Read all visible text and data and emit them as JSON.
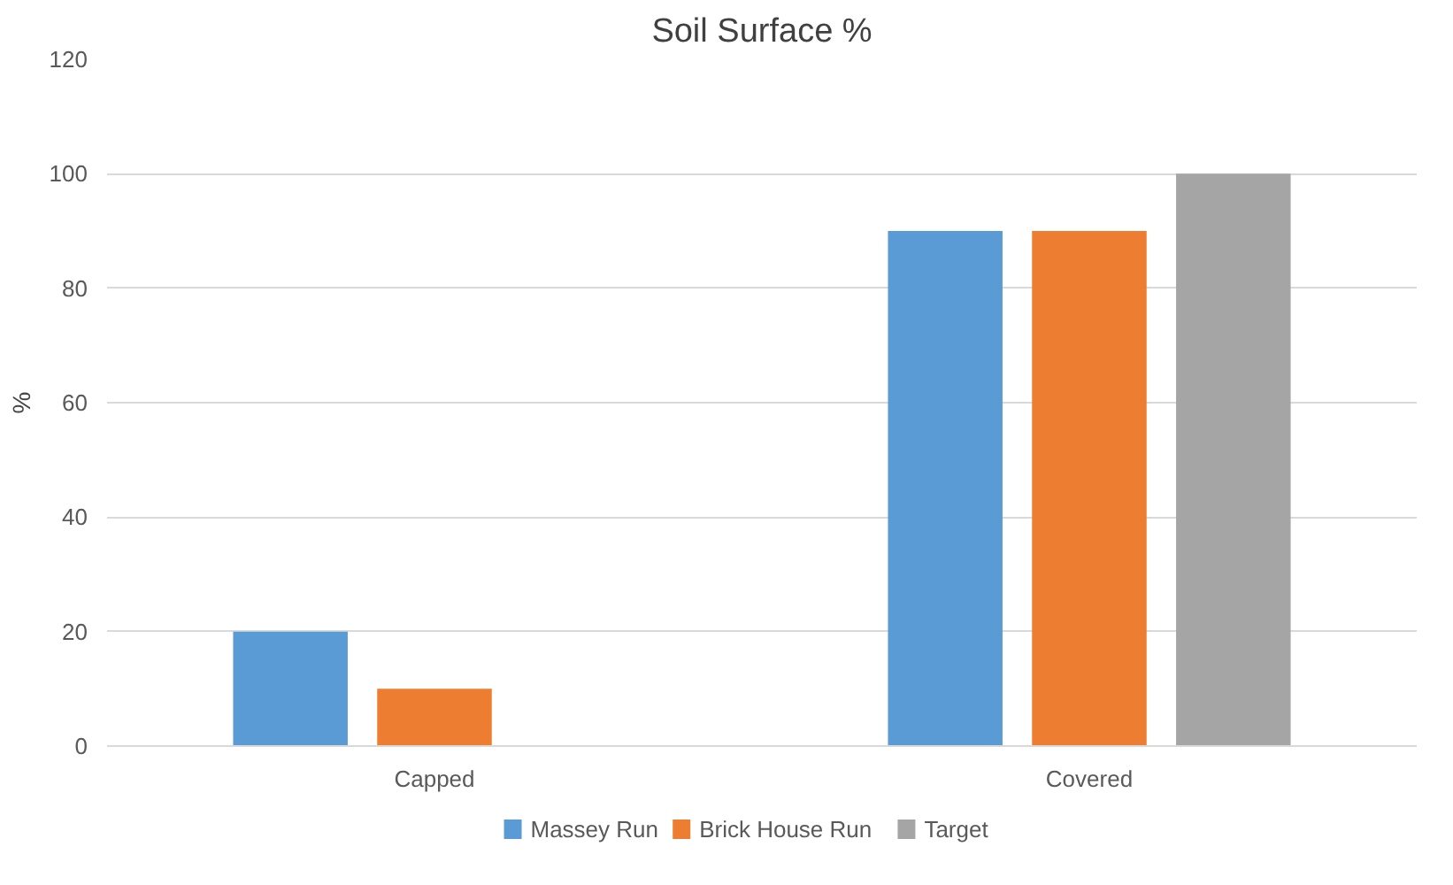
{
  "chart_data": {
    "type": "bar",
    "title": "Soil Surface %",
    "ylabel": "%",
    "categories": [
      "Capped",
      "Covered"
    ],
    "series": [
      {
        "name": "Massey Run",
        "color": "#5b9bd5",
        "values": [
          20,
          90
        ]
      },
      {
        "name": "Brick House Run",
        "color": "#ed7d31",
        "values": [
          10,
          90
        ]
      },
      {
        "name": "Target",
        "color": "#a5a5a5",
        "values": [
          0,
          100
        ]
      }
    ],
    "ylim": [
      0,
      120
    ],
    "yticks": [
      0,
      20,
      40,
      60,
      80,
      100,
      120
    ],
    "grid": "y",
    "legend": "bottom"
  }
}
